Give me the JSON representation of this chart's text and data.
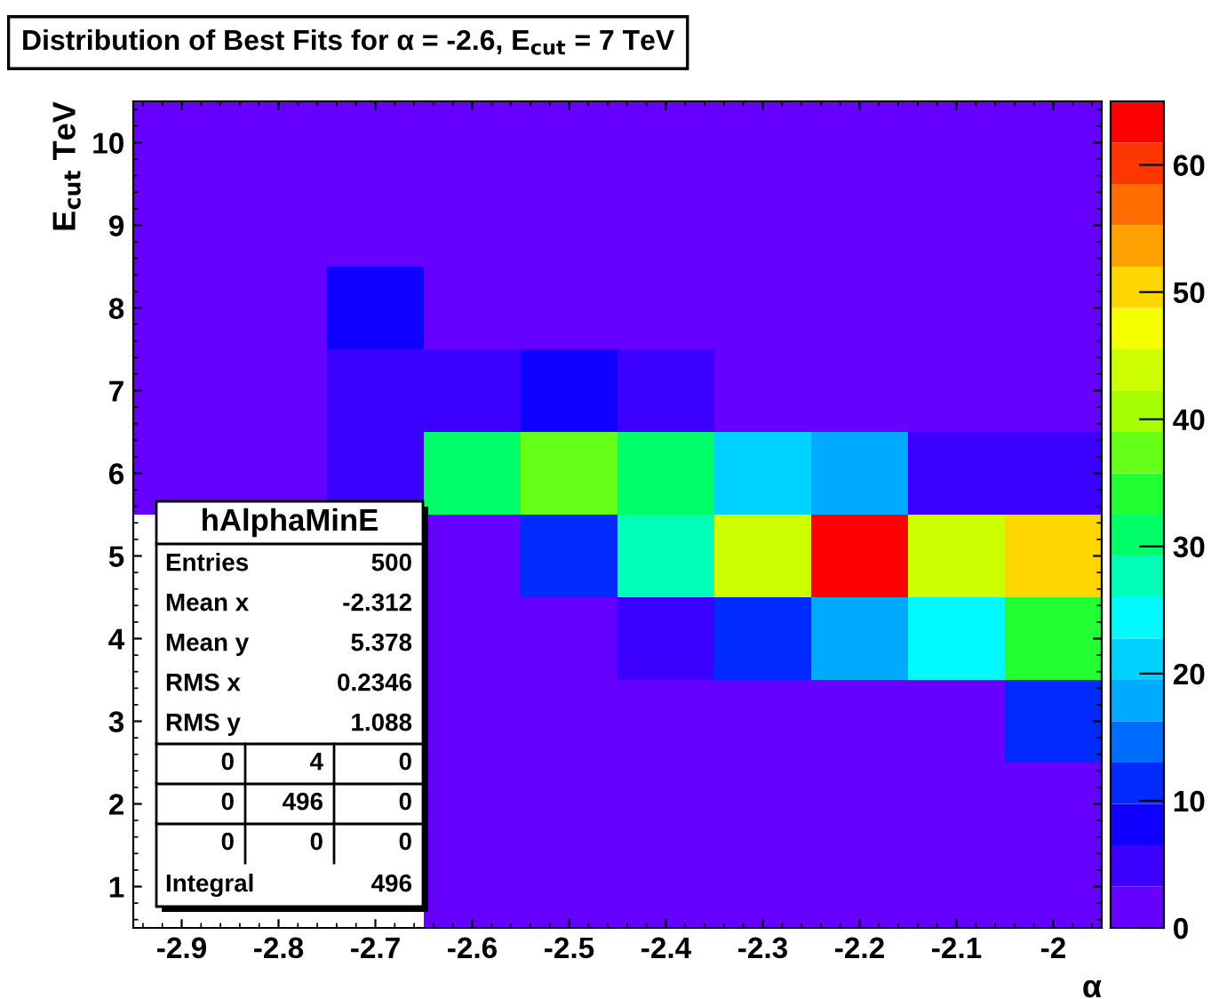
{
  "chart_data": {
    "type": "heatmap",
    "title": "Distribution of Best Fits for α = -2.6, E$_{cut}$ = 7 TeV",
    "xlabel": "α",
    "ylabel": "E$_{cut}$ TeV",
    "x": [
      -2.9,
      -2.8,
      -2.7,
      -2.6,
      -2.5,
      -2.4,
      -2.3,
      -2.2,
      -2.1,
      -2
    ],
    "y_categories": [
      "10",
      "9",
      "8",
      "7",
      "6",
      "5",
      "4",
      "3",
      "2",
      "1"
    ],
    "cells": [
      [
        0,
        0,
        0,
        0,
        0,
        0,
        0,
        0,
        0,
        0
      ],
      [
        0,
        0,
        2,
        0,
        0,
        0,
        0,
        0,
        0,
        0
      ],
      [
        0,
        3,
        8,
        3,
        1,
        0,
        0,
        0,
        0,
        0
      ],
      [
        0,
        0,
        6,
        4,
        8,
        5,
        3,
        2,
        0,
        0
      ],
      [
        0,
        0,
        6,
        30,
        38,
        30,
        22,
        18,
        5,
        5
      ],
      [
        null,
        null,
        null,
        3,
        10,
        28,
        45,
        63,
        45,
        50
      ],
      [
        null,
        null,
        null,
        0,
        2,
        5,
        12,
        18,
        25,
        35
      ],
      [
        null,
        null,
        null,
        0,
        0,
        0,
        0,
        0,
        3,
        12
      ],
      [
        null,
        null,
        null,
        0,
        0,
        0,
        0,
        0,
        0,
        0
      ],
      [
        null,
        null,
        null,
        0,
        0,
        0,
        0,
        0,
        0,
        0
      ]
    ],
    "xlim": [
      -2.95,
      -1.95
    ],
    "xticks": [
      -2.9,
      -2.8,
      -2.7,
      -2.6,
      -2.5,
      -2.4,
      -2.3,
      -2.2,
      -2.1,
      -2
    ],
    "clim": [
      0,
      65
    ],
    "cticks": [
      0,
      10,
      20,
      30,
      40,
      50,
      60
    ],
    "annotations": [
      "hAlphaMinE",
      "Entries",
      "500",
      "Mean x",
      "-2.312",
      "Mean y",
      "5.378",
      "RMS x",
      "0.2346",
      "RMS y",
      "1.088",
      "0",
      "4",
      "0",
      "0",
      "496",
      "0",
      "0",
      "0",
      "0",
      "Integral",
      "496"
    ]
  }
}
